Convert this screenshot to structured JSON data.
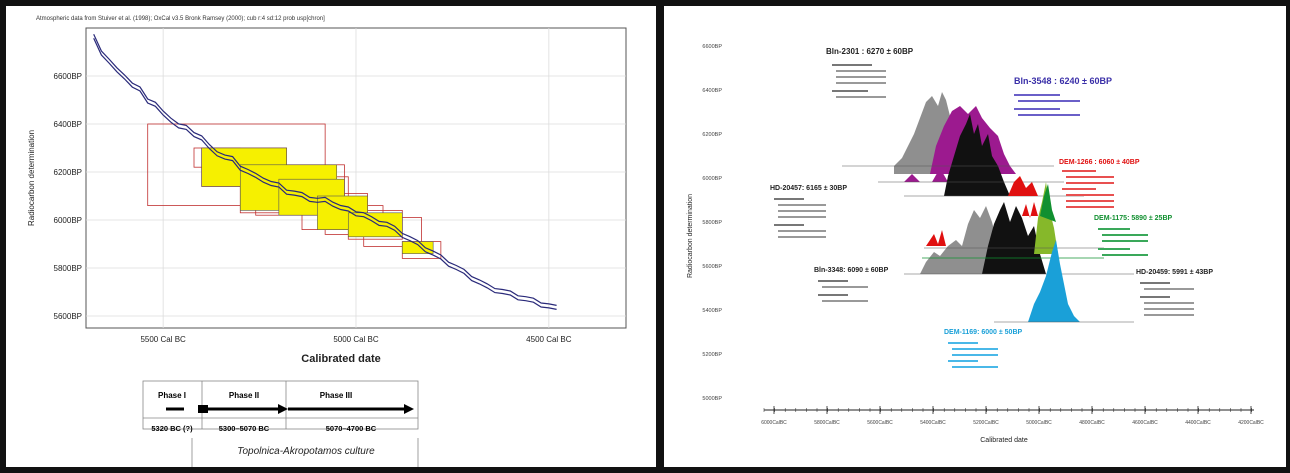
{
  "left": {
    "header": "Atmospheric data from Stuiver et al. (1998); OxCal v3.5 Bronk Ramsey (2000); cub r:4 sd:12 prob usp[chron]",
    "ylabel": "Radiocarbon determination",
    "xlabel": "Calibrated date",
    "yticks": [
      "6600BP",
      "6400BP",
      "6200BP",
      "6000BP",
      "5800BP",
      "5600BP"
    ],
    "xticks": [
      "5500 Cal BC",
      "5000 Cal BC",
      "4500 Cal BC"
    ],
    "phases": [
      {
        "name": "Phase I",
        "range": "5320 BC (?)"
      },
      {
        "name": "Phase II",
        "range": "5300–5070 BC"
      },
      {
        "name": "Phase III",
        "range": "5070–4700 BC"
      }
    ],
    "culture": "Topolnica-Akropotamos culture"
  },
  "right": {
    "ylabel": "Radiocarbon determination",
    "xlabel": "Calibrated date",
    "yticks": [
      "6600BP",
      "6400BP",
      "6200BP",
      "6000BP",
      "5800BP",
      "5600BP",
      "5400BP",
      "5200BP",
      "5000BP"
    ],
    "xticks": [
      "6000CalBC",
      "5800CalBC",
      "5600CalBC",
      "5400CalBC",
      "5200CalBC",
      "5000CalBC",
      "4800CalBC",
      "4600CalBC",
      "4400CalBC",
      "4200CalBC"
    ],
    "samples": [
      {
        "label": "Bln-2301 : 6270 ± 60BP",
        "color": "#222222"
      },
      {
        "label": "Bln-3548 : 6240 ± 60BP",
        "color": "#3a2fa8"
      },
      {
        "label": "DEM-1266 : 6060 ± 40BP",
        "color": "#e01010"
      },
      {
        "label": "HD-20457: 6165 ± 30BP",
        "color": "#222222"
      },
      {
        "label": "DEM-1175: 5890 ± 25BP",
        "color": "#119030"
      },
      {
        "label": "Bln-3348: 6090 ± 60BP",
        "color": "#222222"
      },
      {
        "label": "HD-20459: 5991 ± 43BP",
        "color": "#222222"
      },
      {
        "label": "DEM-1169: 6000 ± 50BP",
        "color": "#1aa0d8"
      }
    ]
  },
  "chart_data": [
    {
      "type": "line",
      "title": "",
      "xlabel": "Calibrated date",
      "ylabel": "Radiocarbon determination",
      "x_unit": "Cal BC",
      "xlim": [
        5700,
        4300
      ],
      "ylim": [
        5550,
        6800
      ],
      "series": [
        {
          "x": [
            5680,
            5660,
            5640,
            5620,
            5600,
            5580,
            5560,
            5540,
            5520,
            5500,
            5480,
            5460,
            5440,
            5420,
            5400,
            5380,
            5360,
            5340,
            5320,
            5300,
            5280,
            5260,
            5240,
            5220,
            5200,
            5180,
            5160,
            5140,
            5120,
            5100,
            5080,
            5060,
            5040,
            5020,
            5000,
            4980,
            4960,
            4940,
            4920,
            4900,
            4880,
            4860,
            4840,
            4820,
            4800,
            4780,
            4760,
            4740,
            4720,
            4700,
            4680,
            4660,
            4640,
            4620,
            4600,
            4580,
            4560,
            4540,
            4520,
            4500,
            4480
          ],
          "y": [
            6760,
            6700,
            6660,
            6620,
            6600,
            6560,
            6540,
            6500,
            6480,
            6440,
            6420,
            6390,
            6380,
            6360,
            6340,
            6300,
            6280,
            6260,
            6250,
            6220,
            6200,
            6180,
            6170,
            6150,
            6140,
            6120,
            6110,
            6100,
            6090,
            6080,
            6080,
            6070,
            6050,
            6040,
            6030,
            6020,
            6000,
            5990,
            5980,
            5960,
            5940,
            5920,
            5900,
            5880,
            5860,
            5840,
            5820,
            5800,
            5780,
            5760,
            5740,
            5720,
            5710,
            5700,
            5690,
            5680,
            5670,
            5660,
            5650,
            5640,
            5630
          ]
        }
      ],
      "boxes": [
        {
          "x": [
            5540,
            5080
          ],
          "y": [
            6060,
            6400
          ]
        },
        {
          "x": [
            5420,
            5300
          ],
          "y": [
            6220,
            6300
          ]
        },
        {
          "x": [
            5400,
            5180
          ],
          "y": [
            6140,
            6300
          ]
        },
        {
          "x": [
            5300,
            5030
          ],
          "y": [
            6030,
            6230
          ]
        },
        {
          "x": [
            5260,
            5020
          ],
          "y": [
            6020,
            6180
          ]
        },
        {
          "x": [
            5140,
            4970
          ],
          "y": [
            5960,
            6110
          ]
        },
        {
          "x": [
            5080,
            4930
          ],
          "y": [
            5940,
            6060
          ]
        },
        {
          "x": [
            5020,
            4880
          ],
          "y": [
            5920,
            6040
          ]
        },
        {
          "x": [
            4980,
            4830
          ],
          "y": [
            5890,
            6010
          ]
        },
        {
          "x": [
            4880,
            4780
          ],
          "y": [
            5840,
            5910
          ]
        }
      ]
    },
    {
      "type": "area",
      "title": "",
      "xlabel": "Calibrated date",
      "ylabel": "Radiocarbon determination",
      "x": [
        "6000CalBC",
        "5800CalBC",
        "5600CalBC",
        "5400CalBC",
        "5200CalBC",
        "5000CalBC",
        "4800CalBC",
        "4600CalBC",
        "4400CalBC",
        "4200CalBC"
      ]
    }
  ]
}
